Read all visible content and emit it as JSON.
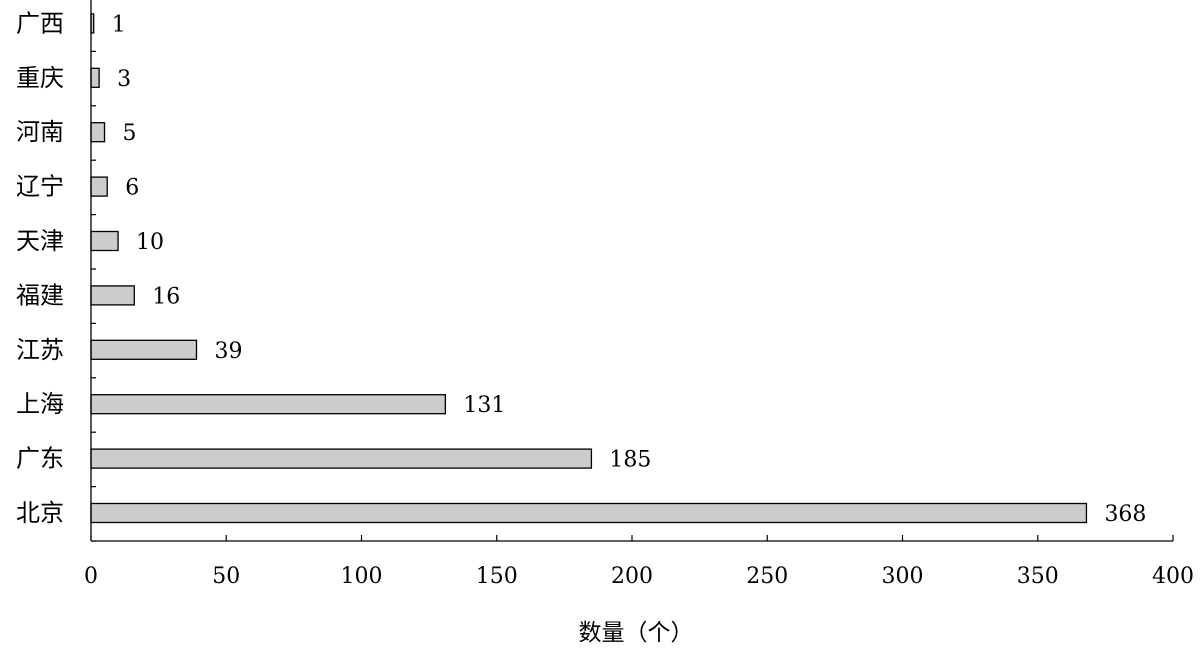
{
  "chart_data": {
    "type": "bar",
    "orientation": "horizontal",
    "categories": [
      "北京",
      "广东",
      "上海",
      "江苏",
      "福建",
      "天津",
      "辽宁",
      "河南",
      "重庆",
      "广西"
    ],
    "values": [
      368,
      185,
      131,
      39,
      16,
      10,
      6,
      5,
      3,
      1
    ],
    "xlabel": "数量（个）",
    "ylabel": "",
    "xlim": [
      0,
      400
    ],
    "xticks": [
      0,
      50,
      100,
      150,
      200,
      250,
      300,
      350,
      400
    ],
    "grid": false,
    "bar_fill": "#cccccc",
    "bar_stroke": "#000000"
  }
}
